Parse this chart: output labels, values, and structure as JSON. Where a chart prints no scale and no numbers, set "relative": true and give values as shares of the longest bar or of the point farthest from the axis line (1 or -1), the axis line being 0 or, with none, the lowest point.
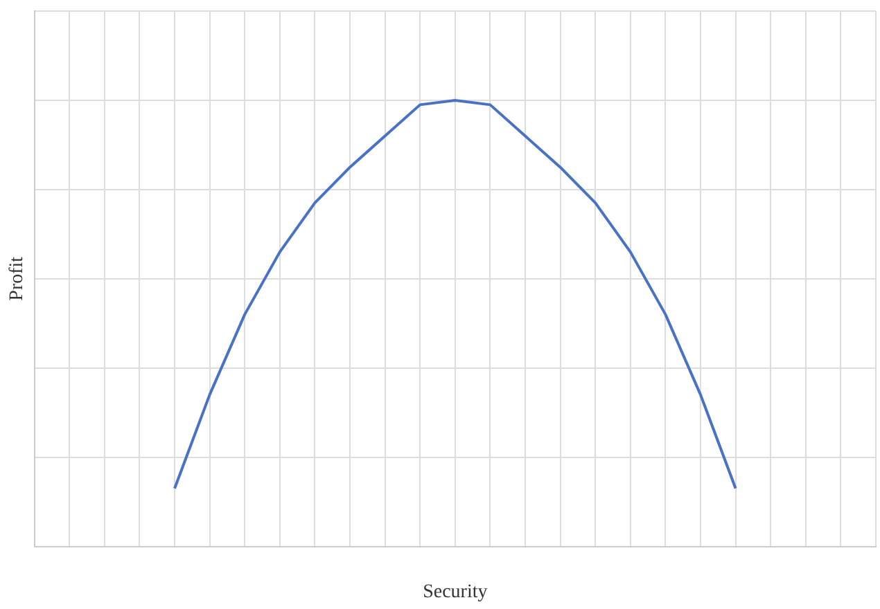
{
  "chart_data": {
    "type": "line",
    "relative": true,
    "xlabel": "Security",
    "ylabel": "Profit",
    "grid": true,
    "marker": "none",
    "line_style": "solid",
    "categories": [
      null,
      null,
      null,
      null,
      null,
      null,
      null,
      null,
      null,
      null,
      null,
      null,
      null,
      null,
      null,
      null,
      null,
      null,
      null,
      null,
      null,
      null,
      null,
      null,
      null
    ],
    "series": [
      {
        "color": "#4a72c4",
        "values": [
          null,
          null,
          null,
          null,
          0.13,
          0.34,
          0.52,
          0.66,
          0.77,
          0.85,
          0.92,
          0.99,
          1,
          0.99,
          0.92,
          0.85,
          0.77,
          0.66,
          0.52,
          0.34,
          0.13,
          null,
          null,
          null,
          null
        ]
      }
    ]
  }
}
